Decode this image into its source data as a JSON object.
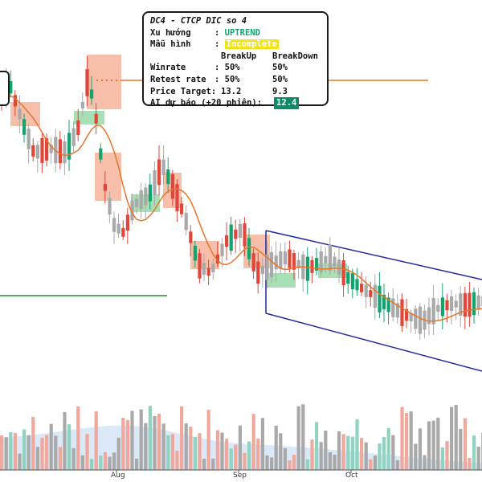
{
  "info": {
    "title": "DC4 - CTCP DIC so 4",
    "trend_label": "Xu hướng",
    "trend_sep": ":",
    "trend_value": "UPTREND",
    "pattern_label": "Mẫu hình",
    "pattern_sep": ":",
    "pattern_value": "Incomplete",
    "col_breakup": "BreakUp",
    "col_breakdown": "BreakDown",
    "winrate_label": "Winrate",
    "winrate_sep": ":",
    "winrate_up": "50%",
    "winrate_down": "50%",
    "retest_label": "Retest rate",
    "retest_sep": ":",
    "retest_up": "50%",
    "retest_down": "50%",
    "target_label": "Price Target:",
    "target_up": "13.2",
    "target_down": "9.3",
    "ai_label": "AI dự báo (+20 phiên):",
    "ai_value": "12.4"
  },
  "chart_data": {
    "type": "candlestick",
    "x_ticks": [
      "Aug",
      "Sep",
      "Oct"
    ],
    "colors": {
      "up": "#13a36d",
      "down": "#e0463a",
      "neutral": "#a9a9a9",
      "ma": "#e8742a",
      "channel": "#1f2a9e",
      "support": "#2f8a2f",
      "resistance": "#e8742a",
      "highlight_down": "#f6b49a",
      "highlight_up": "#9ad9a7",
      "volume_up": "#8fd3c0",
      "volume_down": "#f0a79c",
      "volume_neutral": "#a9a9a9",
      "volume_ma_area": "#bcd6f0"
    }
  }
}
